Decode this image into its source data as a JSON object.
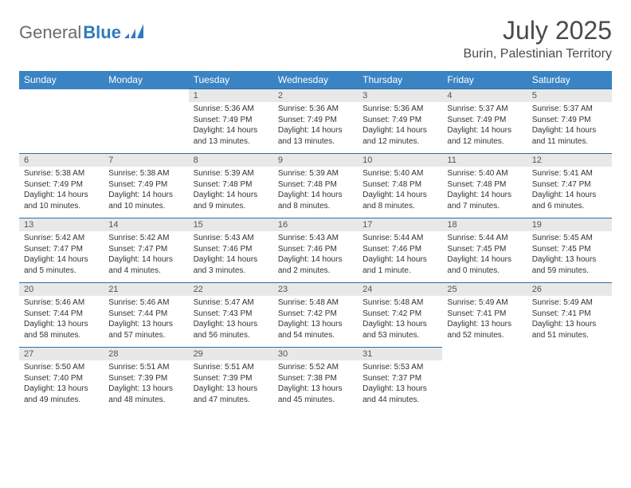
{
  "brand": {
    "part1": "General",
    "part2": "Blue"
  },
  "title": "July 2025",
  "location": "Burin, Palestinian Territory",
  "day_headers": [
    "Sunday",
    "Monday",
    "Tuesday",
    "Wednesday",
    "Thursday",
    "Friday",
    "Saturday"
  ],
  "colors": {
    "header_bg": "#3b84c4",
    "header_text": "#ffffff",
    "daynum_bg": "#e8e8e8",
    "row_border": "#2e6da4",
    "logo_gray": "#6b6b6b",
    "logo_blue": "#2f7abf"
  },
  "weeks": [
    [
      null,
      null,
      {
        "n": "1",
        "sr": "5:36 AM",
        "ss": "7:49 PM",
        "dl": "14 hours and 13 minutes."
      },
      {
        "n": "2",
        "sr": "5:36 AM",
        "ss": "7:49 PM",
        "dl": "14 hours and 13 minutes."
      },
      {
        "n": "3",
        "sr": "5:36 AM",
        "ss": "7:49 PM",
        "dl": "14 hours and 12 minutes."
      },
      {
        "n": "4",
        "sr": "5:37 AM",
        "ss": "7:49 PM",
        "dl": "14 hours and 12 minutes."
      },
      {
        "n": "5",
        "sr": "5:37 AM",
        "ss": "7:49 PM",
        "dl": "14 hours and 11 minutes."
      }
    ],
    [
      {
        "n": "6",
        "sr": "5:38 AM",
        "ss": "7:49 PM",
        "dl": "14 hours and 10 minutes."
      },
      {
        "n": "7",
        "sr": "5:38 AM",
        "ss": "7:49 PM",
        "dl": "14 hours and 10 minutes."
      },
      {
        "n": "8",
        "sr": "5:39 AM",
        "ss": "7:48 PM",
        "dl": "14 hours and 9 minutes."
      },
      {
        "n": "9",
        "sr": "5:39 AM",
        "ss": "7:48 PM",
        "dl": "14 hours and 8 minutes."
      },
      {
        "n": "10",
        "sr": "5:40 AM",
        "ss": "7:48 PM",
        "dl": "14 hours and 8 minutes."
      },
      {
        "n": "11",
        "sr": "5:40 AM",
        "ss": "7:48 PM",
        "dl": "14 hours and 7 minutes."
      },
      {
        "n": "12",
        "sr": "5:41 AM",
        "ss": "7:47 PM",
        "dl": "14 hours and 6 minutes."
      }
    ],
    [
      {
        "n": "13",
        "sr": "5:42 AM",
        "ss": "7:47 PM",
        "dl": "14 hours and 5 minutes."
      },
      {
        "n": "14",
        "sr": "5:42 AM",
        "ss": "7:47 PM",
        "dl": "14 hours and 4 minutes."
      },
      {
        "n": "15",
        "sr": "5:43 AM",
        "ss": "7:46 PM",
        "dl": "14 hours and 3 minutes."
      },
      {
        "n": "16",
        "sr": "5:43 AM",
        "ss": "7:46 PM",
        "dl": "14 hours and 2 minutes."
      },
      {
        "n": "17",
        "sr": "5:44 AM",
        "ss": "7:46 PM",
        "dl": "14 hours and 1 minute."
      },
      {
        "n": "18",
        "sr": "5:44 AM",
        "ss": "7:45 PM",
        "dl": "14 hours and 0 minutes."
      },
      {
        "n": "19",
        "sr": "5:45 AM",
        "ss": "7:45 PM",
        "dl": "13 hours and 59 minutes."
      }
    ],
    [
      {
        "n": "20",
        "sr": "5:46 AM",
        "ss": "7:44 PM",
        "dl": "13 hours and 58 minutes."
      },
      {
        "n": "21",
        "sr": "5:46 AM",
        "ss": "7:44 PM",
        "dl": "13 hours and 57 minutes."
      },
      {
        "n": "22",
        "sr": "5:47 AM",
        "ss": "7:43 PM",
        "dl": "13 hours and 56 minutes."
      },
      {
        "n": "23",
        "sr": "5:48 AM",
        "ss": "7:42 PM",
        "dl": "13 hours and 54 minutes."
      },
      {
        "n": "24",
        "sr": "5:48 AM",
        "ss": "7:42 PM",
        "dl": "13 hours and 53 minutes."
      },
      {
        "n": "25",
        "sr": "5:49 AM",
        "ss": "7:41 PM",
        "dl": "13 hours and 52 minutes."
      },
      {
        "n": "26",
        "sr": "5:49 AM",
        "ss": "7:41 PM",
        "dl": "13 hours and 51 minutes."
      }
    ],
    [
      {
        "n": "27",
        "sr": "5:50 AM",
        "ss": "7:40 PM",
        "dl": "13 hours and 49 minutes."
      },
      {
        "n": "28",
        "sr": "5:51 AM",
        "ss": "7:39 PM",
        "dl": "13 hours and 48 minutes."
      },
      {
        "n": "29",
        "sr": "5:51 AM",
        "ss": "7:39 PM",
        "dl": "13 hours and 47 minutes."
      },
      {
        "n": "30",
        "sr": "5:52 AM",
        "ss": "7:38 PM",
        "dl": "13 hours and 45 minutes."
      },
      {
        "n": "31",
        "sr": "5:53 AM",
        "ss": "7:37 PM",
        "dl": "13 hours and 44 minutes."
      },
      null,
      null
    ]
  ],
  "labels": {
    "sunrise": "Sunrise:",
    "sunset": "Sunset:",
    "daylight": "Daylight:"
  }
}
